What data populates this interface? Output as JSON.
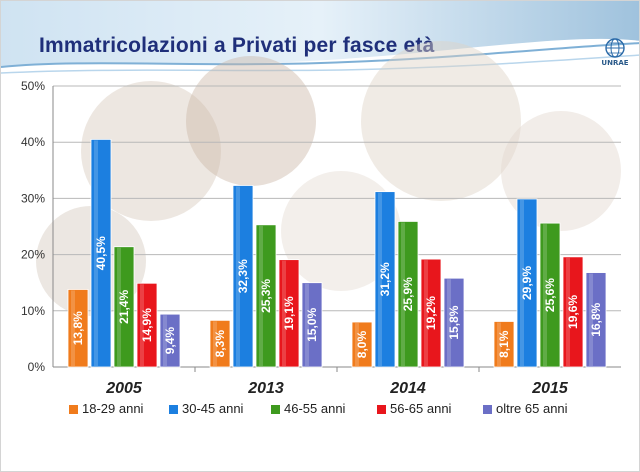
{
  "slide": {
    "title": "Immatricolazioni a Privati per fasce età",
    "logo_text": "UNRAE",
    "logo_icon": "unrae-globe-logo"
  },
  "chart_data": {
    "type": "bar",
    "title": "",
    "xlabel": "",
    "ylabel": "",
    "categories": [
      "2005",
      "2013",
      "2014",
      "2015"
    ],
    "ylim": [
      0,
      50
    ],
    "y_ticks": [
      "0%",
      "10%",
      "20%",
      "30%",
      "40%",
      "50%"
    ],
    "grid": true,
    "legend_position": "bottom",
    "series": [
      {
        "name": "18-29 anni",
        "color": "#f07b1c",
        "values": [
          13.8,
          8.3,
          8.0,
          8.1
        ],
        "labels": [
          "13,8%",
          "8,3%",
          "8,0%",
          "8,1%"
        ]
      },
      {
        "name": "30-45 anni",
        "color": "#1c7fe0",
        "values": [
          40.5,
          32.3,
          31.2,
          29.9
        ],
        "labels": [
          "40,5%",
          "32,3%",
          "31,2%",
          "29,9%"
        ]
      },
      {
        "name": "46-55 anni",
        "color": "#3e9a1e",
        "values": [
          21.4,
          25.3,
          25.9,
          25.6
        ],
        "labels": [
          "21,4%",
          "25,3%",
          "25,9%",
          "25,6%"
        ]
      },
      {
        "name": "56-65 anni",
        "color": "#e8161c",
        "values": [
          14.9,
          19.1,
          19.2,
          19.6
        ],
        "labels": [
          "14,9%",
          "19,1%",
          "19,2%",
          "19,6%"
        ]
      },
      {
        "name": "oltre 65 anni",
        "color": "#6b6fc6",
        "values": [
          9.4,
          15.0,
          15.8,
          16.8
        ],
        "labels": [
          "9,4%",
          "15,0%",
          "15,8%",
          "16,8%"
        ]
      }
    ]
  }
}
